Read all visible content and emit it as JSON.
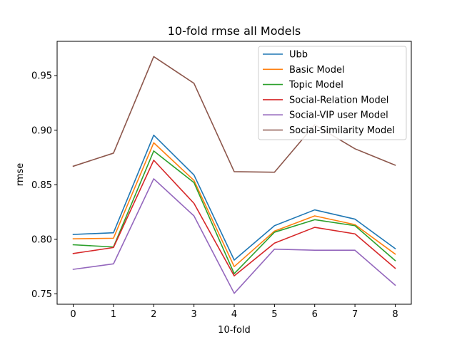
{
  "chart_data": {
    "type": "line",
    "title": "10-fold rmse all Models",
    "xlabel": "10-fold",
    "ylabel": "rmse",
    "x": [
      0,
      1,
      2,
      3,
      4,
      5,
      6,
      7,
      8
    ],
    "xticks": [
      "0",
      "1",
      "2",
      "3",
      "4",
      "5",
      "6",
      "7",
      "8"
    ],
    "yticks": [
      "0.75",
      "0.80",
      "0.85",
      "0.90",
      "0.95"
    ],
    "ytick_values": [
      0.75,
      0.8,
      0.85,
      0.9,
      0.95
    ],
    "xlim": [
      -0.4,
      8.4
    ],
    "ylim": [
      0.7405,
      0.9815
    ],
    "grid": false,
    "legend_position": "top-right",
    "series": [
      {
        "name": "Ubb",
        "color": "#1f77b4",
        "values": [
          0.8045,
          0.806,
          0.8955,
          0.859,
          0.781,
          0.8125,
          0.827,
          0.8185,
          0.7915
        ]
      },
      {
        "name": "Basic Model",
        "color": "#ff7f0e",
        "values": [
          0.8005,
          0.801,
          0.8885,
          0.854,
          0.775,
          0.8075,
          0.8215,
          0.8135,
          0.7865
        ]
      },
      {
        "name": "Topic Model",
        "color": "#2ca02c",
        "values": [
          0.795,
          0.793,
          0.881,
          0.852,
          0.7685,
          0.8065,
          0.818,
          0.8125,
          0.7805
        ]
      },
      {
        "name": "Social-Relation Model",
        "color": "#d62728",
        "values": [
          0.787,
          0.7925,
          0.8725,
          0.833,
          0.7665,
          0.7965,
          0.811,
          0.805,
          0.7735
        ]
      },
      {
        "name": "Social-VIP user Model",
        "color": "#9467bd",
        "values": [
          0.7725,
          0.7775,
          0.8555,
          0.8215,
          0.7505,
          0.791,
          0.79,
          0.79,
          0.758
        ]
      },
      {
        "name": "Social-Similarity Model",
        "color": "#8c564b",
        "values": [
          0.867,
          0.879,
          0.9675,
          0.943,
          0.862,
          0.8615,
          0.905,
          0.883,
          0.868
        ]
      }
    ]
  }
}
